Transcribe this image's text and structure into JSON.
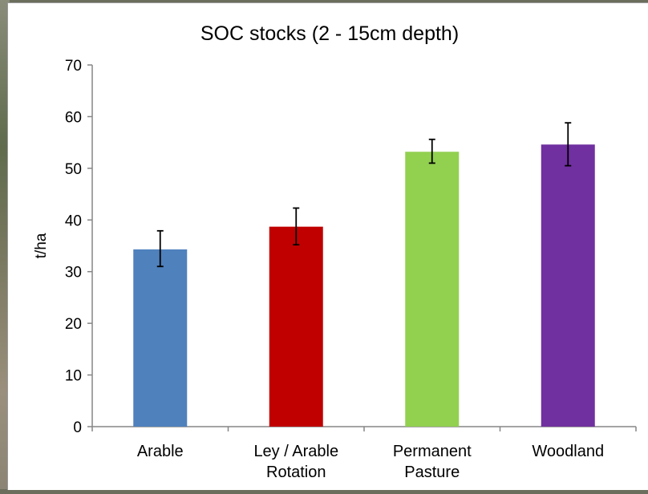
{
  "chart_data": {
    "type": "bar",
    "title": "SOC stocks (2 - 15cm depth)",
    "xlabel": "",
    "ylabel": "t/ha",
    "ylim": [
      0,
      70
    ],
    "yticks": [
      0,
      10,
      20,
      30,
      40,
      50,
      60,
      70
    ],
    "grid": false,
    "legend": "none",
    "categories": [
      "Arable",
      "Ley / Arable Rotation",
      "Permanent Pasture",
      "Woodland"
    ],
    "category_lines": [
      [
        "Arable"
      ],
      [
        "Ley / Arable",
        "Rotation"
      ],
      [
        "Permanent",
        "Pasture"
      ],
      [
        "Woodland"
      ]
    ],
    "values": [
      34.3,
      38.7,
      53.2,
      54.6
    ],
    "error_low": [
      31.0,
      35.2,
      51.0,
      50.5
    ],
    "error_high": [
      37.9,
      42.3,
      55.6,
      58.8
    ],
    "colors": [
      "#4f81bd",
      "#c00000",
      "#92d050",
      "#7030a0"
    ]
  }
}
